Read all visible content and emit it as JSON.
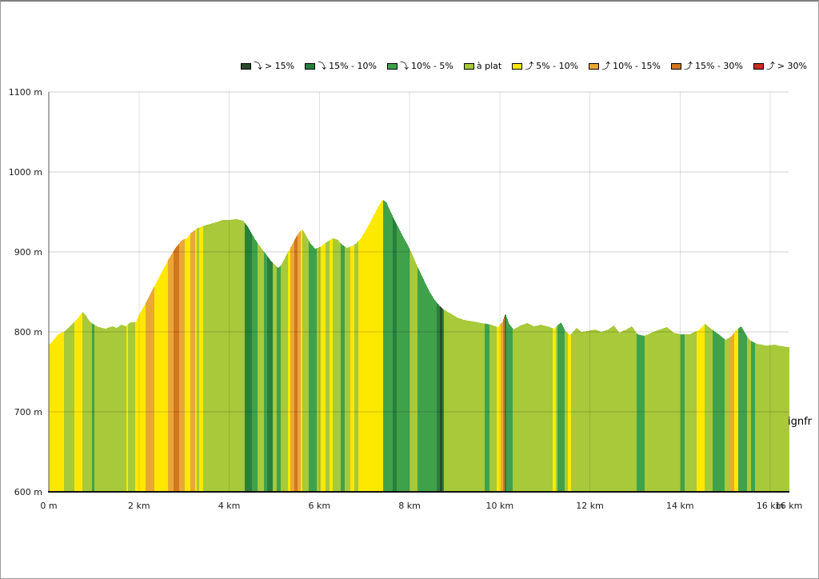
{
  "attribution": "ignfr",
  "legend": {
    "items": [
      {
        "arrow": "⤵",
        "label": "> 15%",
        "color": "#2c4a2e"
      },
      {
        "arrow": "⤵",
        "label": "15% - 10%",
        "color": "#28803c"
      },
      {
        "arrow": "⤵",
        "label": "10% - 5%",
        "color": "#3fa24b"
      },
      {
        "arrow": "",
        "label": "à plat",
        "color": "#a8c93a"
      },
      {
        "arrow": "⤴",
        "label": "5% - 10%",
        "color": "#ffe800"
      },
      {
        "arrow": "⤴",
        "label": "10% - 15%",
        "color": "#eaa738"
      },
      {
        "arrow": "⤴",
        "label": "15% - 30%",
        "color": "#d2761f"
      },
      {
        "arrow": "⤴",
        "label": "> 30%",
        "color": "#cc2d25"
      }
    ]
  },
  "chart_data": {
    "type": "area",
    "title": "",
    "ylim": [
      600,
      1100
    ],
    "xlim_km": [
      0,
      16.41
    ],
    "grid": true,
    "y_ticks": [
      {
        "m": 1100,
        "label": "1100 m"
      },
      {
        "m": 1000,
        "label": "1000 m"
      },
      {
        "m": 900,
        "label": "900 m"
      },
      {
        "m": 800,
        "label": "800 m"
      },
      {
        "m": 700,
        "label": "700 m"
      },
      {
        "m": 600,
        "label": "600 m"
      }
    ],
    "x_ticks": [
      {
        "km": 0,
        "label": "0 m"
      },
      {
        "km": 2,
        "label": "2 km"
      },
      {
        "km": 4,
        "label": "4 km"
      },
      {
        "km": 6,
        "label": "6 km"
      },
      {
        "km": 8,
        "label": "8 km"
      },
      {
        "km": 10,
        "label": "10 km"
      },
      {
        "km": 12,
        "label": "12 km"
      },
      {
        "km": 14,
        "label": "14 km"
      },
      {
        "km": 16,
        "label": "16 km"
      },
      {
        "km": 16.41,
        "label": "16 km"
      }
    ],
    "colors": {
      "d15": "#2c4a2e",
      "d10": "#28803c",
      "d5": "#3fa24b",
      "flat": "#a8c93a",
      "u5": "#ffe800",
      "u10": "#eaa738",
      "u15": "#d2761f",
      "u30": "#cc2d25"
    },
    "profile": [
      [
        0.0,
        784
      ],
      [
        0.1,
        790
      ],
      [
        0.2,
        797
      ],
      [
        0.35,
        801
      ],
      [
        0.5,
        809
      ],
      [
        0.62,
        816
      ],
      [
        0.74,
        825
      ],
      [
        0.82,
        820
      ],
      [
        0.9,
        813
      ],
      [
        1.0,
        809
      ],
      [
        1.1,
        806
      ],
      [
        1.25,
        804
      ],
      [
        1.4,
        807
      ],
      [
        1.5,
        805
      ],
      [
        1.6,
        809
      ],
      [
        1.7,
        807
      ],
      [
        1.8,
        812
      ],
      [
        1.92,
        812
      ],
      [
        2.0,
        822
      ],
      [
        2.13,
        835
      ],
      [
        2.34,
        858
      ],
      [
        2.5,
        875
      ],
      [
        2.64,
        890
      ],
      [
        2.8,
        905
      ],
      [
        2.95,
        915
      ],
      [
        3.05,
        917
      ],
      [
        3.15,
        924
      ],
      [
        3.3,
        930
      ],
      [
        3.5,
        934
      ],
      [
        3.7,
        937
      ],
      [
        3.85,
        940
      ],
      [
        4.0,
        940
      ],
      [
        4.15,
        941
      ],
      [
        4.3,
        939
      ],
      [
        4.4,
        932
      ],
      [
        4.5,
        922
      ],
      [
        4.6,
        913
      ],
      [
        4.7,
        905
      ],
      [
        4.8,
        898
      ],
      [
        4.9,
        890
      ],
      [
        5.0,
        884
      ],
      [
        5.08,
        880
      ],
      [
        5.15,
        884
      ],
      [
        5.25,
        895
      ],
      [
        5.35,
        905
      ],
      [
        5.45,
        916
      ],
      [
        5.55,
        925
      ],
      [
        5.62,
        928
      ],
      [
        5.7,
        920
      ],
      [
        5.8,
        910
      ],
      [
        5.9,
        904
      ],
      [
        6.0,
        906
      ],
      [
        6.1,
        910
      ],
      [
        6.2,
        914
      ],
      [
        6.3,
        917
      ],
      [
        6.4,
        915
      ],
      [
        6.5,
        909
      ],
      [
        6.6,
        905
      ],
      [
        6.7,
        907
      ],
      [
        6.8,
        910
      ],
      [
        6.9,
        916
      ],
      [
        7.0,
        925
      ],
      [
        7.1,
        935
      ],
      [
        7.2,
        946
      ],
      [
        7.3,
        957
      ],
      [
        7.4,
        965
      ],
      [
        7.48,
        962
      ],
      [
        7.55,
        953
      ],
      [
        7.65,
        941
      ],
      [
        7.75,
        930
      ],
      [
        7.85,
        919
      ],
      [
        7.95,
        909
      ],
      [
        8.05,
        897
      ],
      [
        8.15,
        884
      ],
      [
        8.25,
        872
      ],
      [
        8.35,
        860
      ],
      [
        8.45,
        849
      ],
      [
        8.55,
        840
      ],
      [
        8.65,
        833
      ],
      [
        8.75,
        828
      ],
      [
        8.9,
        823
      ],
      [
        9.05,
        818
      ],
      [
        9.2,
        815
      ],
      [
        9.4,
        813
      ],
      [
        9.6,
        811
      ],
      [
        9.8,
        809
      ],
      [
        9.95,
        806
      ],
      [
        10.05,
        812
      ],
      [
        10.12,
        823
      ],
      [
        10.2,
        810
      ],
      [
        10.3,
        803
      ],
      [
        10.45,
        808
      ],
      [
        10.6,
        811
      ],
      [
        10.75,
        807
      ],
      [
        10.9,
        809
      ],
      [
        11.05,
        807
      ],
      [
        11.2,
        804
      ],
      [
        11.35,
        812
      ],
      [
        11.45,
        801
      ],
      [
        11.55,
        796
      ],
      [
        11.7,
        805
      ],
      [
        11.8,
        800
      ],
      [
        11.95,
        801
      ],
      [
        12.1,
        803
      ],
      [
        12.25,
        800
      ],
      [
        12.4,
        803
      ],
      [
        12.52,
        808
      ],
      [
        12.65,
        799
      ],
      [
        12.8,
        803
      ],
      [
        12.92,
        807
      ],
      [
        13.05,
        797
      ],
      [
        13.2,
        795
      ],
      [
        13.4,
        800
      ],
      [
        13.55,
        803
      ],
      [
        13.7,
        806
      ],
      [
        13.85,
        799
      ],
      [
        14.0,
        797
      ],
      [
        14.2,
        797
      ],
      [
        14.4,
        802
      ],
      [
        14.55,
        810
      ],
      [
        14.7,
        803
      ],
      [
        14.85,
        797
      ],
      [
        15.0,
        790
      ],
      [
        15.12,
        794
      ],
      [
        15.25,
        803
      ],
      [
        15.35,
        807
      ],
      [
        15.45,
        797
      ],
      [
        15.55,
        789
      ],
      [
        15.7,
        785
      ],
      [
        15.9,
        783
      ],
      [
        16.1,
        784
      ],
      [
        16.25,
        782
      ],
      [
        16.41,
        781
      ]
    ],
    "gradient_segments": [
      {
        "from": 0.0,
        "to": 0.33,
        "cat": "u5"
      },
      {
        "from": 0.33,
        "to": 0.55,
        "cat": "flat"
      },
      {
        "from": 0.55,
        "to": 0.73,
        "cat": "u5"
      },
      {
        "from": 0.73,
        "to": 0.95,
        "cat": "flat"
      },
      {
        "from": 0.95,
        "to": 1.0,
        "cat": "d5"
      },
      {
        "from": 1.0,
        "to": 1.71,
        "cat": "flat"
      },
      {
        "from": 1.71,
        "to": 1.75,
        "cat": "u5"
      },
      {
        "from": 1.75,
        "to": 1.9,
        "cat": "flat"
      },
      {
        "from": 1.9,
        "to": 2.13,
        "cat": "u5"
      },
      {
        "from": 2.13,
        "to": 2.34,
        "cat": "u10"
      },
      {
        "from": 2.34,
        "to": 2.63,
        "cat": "u5"
      },
      {
        "from": 2.63,
        "to": 2.75,
        "cat": "u10"
      },
      {
        "from": 2.75,
        "to": 2.88,
        "cat": "u15"
      },
      {
        "from": 2.88,
        "to": 3.0,
        "cat": "u10"
      },
      {
        "from": 3.0,
        "to": 3.13,
        "cat": "u5"
      },
      {
        "from": 3.13,
        "to": 3.23,
        "cat": "u10"
      },
      {
        "from": 3.23,
        "to": 3.28,
        "cat": "u5"
      },
      {
        "from": 3.28,
        "to": 3.32,
        "cat": "flat"
      },
      {
        "from": 3.32,
        "to": 3.42,
        "cat": "u5"
      },
      {
        "from": 3.42,
        "to": 4.34,
        "cat": "flat"
      },
      {
        "from": 4.34,
        "to": 4.5,
        "cat": "d10"
      },
      {
        "from": 4.5,
        "to": 4.62,
        "cat": "d5"
      },
      {
        "from": 4.62,
        "to": 4.77,
        "cat": "flat"
      },
      {
        "from": 4.77,
        "to": 4.84,
        "cat": "d5"
      },
      {
        "from": 4.84,
        "to": 4.95,
        "cat": "d10"
      },
      {
        "from": 4.95,
        "to": 5.04,
        "cat": "flat"
      },
      {
        "from": 5.04,
        "to": 5.14,
        "cat": "d5"
      },
      {
        "from": 5.14,
        "to": 5.3,
        "cat": "flat"
      },
      {
        "from": 5.3,
        "to": 5.35,
        "cat": "u5"
      },
      {
        "from": 5.35,
        "to": 5.44,
        "cat": "u10"
      },
      {
        "from": 5.44,
        "to": 5.51,
        "cat": "u15"
      },
      {
        "from": 5.51,
        "to": 5.57,
        "cat": "u10"
      },
      {
        "from": 5.57,
        "to": 5.61,
        "cat": "u5"
      },
      {
        "from": 5.61,
        "to": 5.76,
        "cat": "flat"
      },
      {
        "from": 5.76,
        "to": 5.94,
        "cat": "d5"
      },
      {
        "from": 5.94,
        "to": 6.03,
        "cat": "flat"
      },
      {
        "from": 6.03,
        "to": 6.12,
        "cat": "u5"
      },
      {
        "from": 6.12,
        "to": 6.21,
        "cat": "flat"
      },
      {
        "from": 6.21,
        "to": 6.29,
        "cat": "u5"
      },
      {
        "from": 6.29,
        "to": 6.47,
        "cat": "flat"
      },
      {
        "from": 6.47,
        "to": 6.56,
        "cat": "d5"
      },
      {
        "from": 6.56,
        "to": 6.68,
        "cat": "flat"
      },
      {
        "from": 6.68,
        "to": 6.77,
        "cat": "u5"
      },
      {
        "from": 6.77,
        "to": 6.86,
        "cat": "flat"
      },
      {
        "from": 6.86,
        "to": 7.4,
        "cat": "u5"
      },
      {
        "from": 7.4,
        "to": 7.62,
        "cat": "d5"
      },
      {
        "from": 7.62,
        "to": 7.71,
        "cat": "d10"
      },
      {
        "from": 7.71,
        "to": 8.0,
        "cat": "d5"
      },
      {
        "from": 8.0,
        "to": 8.16,
        "cat": "flat"
      },
      {
        "from": 8.16,
        "to": 8.6,
        "cat": "d5"
      },
      {
        "from": 8.6,
        "to": 8.67,
        "cat": "d10"
      },
      {
        "from": 8.67,
        "to": 8.72,
        "cat": "d15"
      },
      {
        "from": 8.72,
        "to": 8.76,
        "cat": "d10"
      },
      {
        "from": 8.76,
        "to": 9.66,
        "cat": "flat"
      },
      {
        "from": 9.66,
        "to": 9.76,
        "cat": "d5"
      },
      {
        "from": 9.76,
        "to": 9.93,
        "cat": "flat"
      },
      {
        "from": 9.93,
        "to": 10.02,
        "cat": "u5"
      },
      {
        "from": 10.02,
        "to": 10.07,
        "cat": "u10"
      },
      {
        "from": 10.07,
        "to": 10.1,
        "cat": "u15"
      },
      {
        "from": 10.1,
        "to": 10.13,
        "cat": "d10"
      },
      {
        "from": 10.13,
        "to": 10.28,
        "cat": "d5"
      },
      {
        "from": 10.28,
        "to": 11.17,
        "cat": "flat"
      },
      {
        "from": 11.17,
        "to": 11.24,
        "cat": "u5"
      },
      {
        "from": 11.24,
        "to": 11.27,
        "cat": "flat"
      },
      {
        "from": 11.27,
        "to": 11.44,
        "cat": "d5"
      },
      {
        "from": 11.44,
        "to": 11.5,
        "cat": "flat"
      },
      {
        "from": 11.5,
        "to": 11.58,
        "cat": "u5"
      },
      {
        "from": 11.58,
        "to": 13.03,
        "cat": "flat"
      },
      {
        "from": 13.03,
        "to": 13.21,
        "cat": "d5"
      },
      {
        "from": 13.21,
        "to": 14.01,
        "cat": "flat"
      },
      {
        "from": 14.01,
        "to": 14.1,
        "cat": "d5"
      },
      {
        "from": 14.1,
        "to": 14.36,
        "cat": "flat"
      },
      {
        "from": 14.36,
        "to": 14.54,
        "cat": "u5"
      },
      {
        "from": 14.54,
        "to": 14.72,
        "cat": "flat"
      },
      {
        "from": 14.72,
        "to": 14.98,
        "cat": "d5"
      },
      {
        "from": 14.98,
        "to": 15.1,
        "cat": "flat"
      },
      {
        "from": 15.1,
        "to": 15.2,
        "cat": "u10"
      },
      {
        "from": 15.2,
        "to": 15.29,
        "cat": "u5"
      },
      {
        "from": 15.29,
        "to": 15.47,
        "cat": "d5"
      },
      {
        "from": 15.47,
        "to": 15.56,
        "cat": "flat"
      },
      {
        "from": 15.56,
        "to": 15.66,
        "cat": "d5"
      },
      {
        "from": 15.66,
        "to": 16.41,
        "cat": "flat"
      }
    ]
  }
}
